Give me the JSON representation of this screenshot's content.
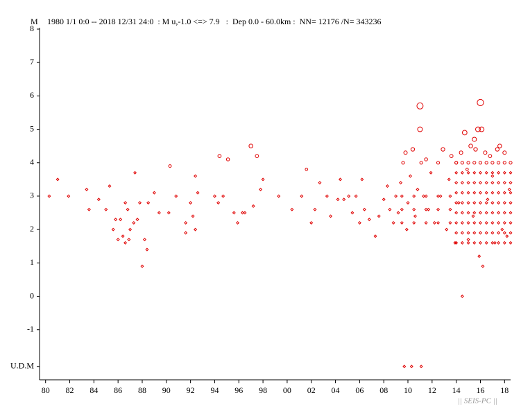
{
  "chart_data": {
    "type": "scatter",
    "title": "1980 1/1 0:0 -- 2018 12/31 24:0  : M u,-1.0 <=> 7.9   :  Dep 0.0 - 60.0km :  NN= 12176 /N= 343236",
    "y_label": "M",
    "footer": "|| SEIS-PC ||",
    "xlim": [
      1979.5,
      2018.5
    ],
    "ylim": [
      -2.5,
      8
    ],
    "xticks": [
      {
        "value": 1980,
        "label": "80"
      },
      {
        "value": 1982,
        "label": "82"
      },
      {
        "value": 1984,
        "label": "84"
      },
      {
        "value": 1986,
        "label": "86"
      },
      {
        "value": 1988,
        "label": "88"
      },
      {
        "value": 1990,
        "label": "90"
      },
      {
        "value": 1992,
        "label": "92"
      },
      {
        "value": 1994,
        "label": "94"
      },
      {
        "value": 1996,
        "label": "96"
      },
      {
        "value": 1998,
        "label": "98"
      },
      {
        "value": 2000,
        "label": "00"
      },
      {
        "value": 2002,
        "label": "02"
      },
      {
        "value": 2004,
        "label": "04"
      },
      {
        "value": 2006,
        "label": "06"
      },
      {
        "value": 2008,
        "label": "08"
      },
      {
        "value": 2010,
        "label": "10"
      },
      {
        "value": 2012,
        "label": "12"
      },
      {
        "value": 2014,
        "label": "14"
      },
      {
        "value": 2016,
        "label": "16"
      },
      {
        "value": 2018,
        "label": "18"
      }
    ],
    "yticks": [
      {
        "value": -2.1,
        "label": "U.D.M"
      },
      -1,
      0,
      1,
      2,
      3,
      4,
      5,
      6,
      7,
      8
    ],
    "series": [
      {
        "name": "events",
        "color": "#e00000",
        "x": [
          1980.3,
          1981.0,
          1981.9,
          1983.4,
          1983.6,
          1984.4,
          1985.0,
          1985.3,
          1985.6,
          1985.8,
          1986.0,
          1986.2,
          1986.4,
          1986.6,
          1986.6,
          1986.8,
          1986.9,
          1987.0,
          1987.3,
          1987.4,
          1987.6,
          1987.8,
          1988.0,
          1988.2,
          1988.4,
          1988.5,
          1989.0,
          1989.4,
          1990.2,
          1990.3,
          1990.8,
          1991.6,
          1991.6,
          1992.0,
          1992.2,
          1992.4,
          1992.4,
          1992.6,
          1994.0,
          1994.3,
          1994.4,
          1994.7,
          1995.1,
          1995.6,
          1995.9,
          1996.3,
          1996.5,
          1997.0,
          1997.2,
          1997.5,
          1997.8,
          1998.0,
          1999.3,
          2000.4,
          2001.2,
          2001.6,
          2002.0,
          2002.3,
          2002.7,
          2003.3,
          2003.6,
          2004.2,
          2004.4,
          2004.7,
          2005.1,
          2005.4,
          2005.7,
          2006.0,
          2006.2,
          2006.4,
          2006.8,
          2007.3,
          2007.6,
          2008.0,
          2008.3,
          2008.5,
          2008.8,
          2009.0,
          2009.2,
          2009.4,
          2009.6,
          2009.8,
          2009.9,
          2010.0,
          2010.2,
          2010.4,
          2010.6,
          2010.8,
          2011.0,
          2011.0,
          2011.1,
          2011.3,
          2011.5,
          2011.7,
          2011.9,
          2012.2,
          2012.5,
          2012.7,
          2012.9,
          2013.2,
          2013.4,
          2013.6,
          2013.9,
          2014.0,
          2014.2,
          2014.4,
          2014.5,
          2014.7,
          2014.9,
          2015.0,
          2015.2,
          2015.4,
          2015.5,
          2015.6,
          2015.8,
          2015.9,
          2016.0,
          2016.1,
          2016.2,
          2016.4,
          2016.6,
          2016.8,
          2017.0,
          2017.2,
          2017.4,
          2017.6,
          2017.8,
          2018.0,
          2018.2,
          2018.4,
          2009.7,
          2010.3,
          2011.1,
          2009.5,
          2010.5,
          2011.5,
          2012.5,
          2013.5,
          2009.5,
          2010.5,
          2011.5,
          2012.5,
          2013.5,
          2009.5,
          2010.5,
          2011.5,
          2012.5,
          2013.5,
          2014,
          2014.5,
          2015,
          2015.5,
          2016,
          2016.5,
          2017,
          2017.5,
          2018,
          2018.5,
          2014,
          2014.5,
          2015,
          2015.5,
          2016,
          2016.5,
          2017,
          2017.5,
          2018,
          2018.5,
          2014,
          2014.5,
          2015,
          2015.5,
          2016,
          2016.5,
          2017,
          2017.5,
          2018,
          2018.5,
          2014,
          2014.5,
          2015,
          2015.5,
          2016,
          2016.5,
          2017,
          2017.5,
          2018,
          2018.5,
          2014,
          2014.5,
          2015,
          2015.5,
          2016,
          2016.5,
          2017,
          2017.5,
          2018,
          2018.5,
          2014,
          2014.5,
          2015,
          2015.5,
          2016,
          2016.5,
          2017,
          2017.5,
          2018,
          2018.5,
          2014,
          2014.5,
          2015,
          2015.5,
          2016,
          2016.5,
          2017,
          2017.5,
          2018,
          2018.5,
          2014,
          2014.5,
          2015,
          2015.5,
          2016,
          2016.5,
          2017,
          2017.5,
          2018,
          2018.5,
          2014,
          2014.5,
          2015,
          2015.5,
          2016,
          2016.5,
          2017,
          2017.5,
          2018,
          2018.5
        ],
        "values": [
          3,
          3.5,
          3,
          3.2,
          2.6,
          2.9,
          2.6,
          3.3,
          2,
          2.3,
          1.7,
          2.3,
          1.8,
          2.8,
          1.6,
          2.6,
          1.7,
          2,
          2.2,
          3.7,
          2.3,
          2.8,
          0.9,
          1.7,
          1.4,
          2.8,
          3.1,
          2.5,
          2.5,
          3.9,
          3,
          1.9,
          2.2,
          2.8,
          2.4,
          2,
          3.6,
          3.1,
          3,
          2.8,
          4.2,
          3,
          4.1,
          2.5,
          2.2,
          2.5,
          2.5,
          4.5,
          2.7,
          4.2,
          3.2,
          3.5,
          3,
          2.6,
          3,
          3.8,
          2.2,
          2.6,
          3.4,
          3,
          2.4,
          2.9,
          3.5,
          2.9,
          3,
          2.5,
          3,
          2.2,
          3.5,
          2.6,
          2.3,
          1.8,
          2.4,
          2.9,
          3.3,
          2.6,
          2.2,
          3,
          2.5,
          3.4,
          4,
          4.3,
          2,
          2.8,
          3.6,
          4.4,
          2.4,
          3.2,
          5.7,
          5,
          4,
          3,
          4.1,
          2.6,
          3.7,
          2.2,
          4,
          3,
          4.4,
          2,
          3.5,
          4.2,
          1.6,
          4,
          2.8,
          4.3,
          0,
          4.9,
          3.8,
          1.7,
          4.5,
          2.4,
          4.7,
          4.4,
          5,
          1.2,
          5.8,
          5,
          0.9,
          4.3,
          2.9,
          4.2,
          3.6,
          1.6,
          4.4,
          4.5,
          2,
          4.3,
          1.8,
          3.2,
          -2.1,
          -2.1,
          -2.1,
          2.2,
          2.2,
          2.2,
          2.2,
          2.2,
          2.6,
          2.6,
          2.6,
          2.6,
          2.6,
          3,
          3,
          3,
          3,
          3,
          1.6,
          1.6,
          1.6,
          1.6,
          1.6,
          1.6,
          1.6,
          1.6,
          1.6,
          1.6,
          1.9,
          1.9,
          1.9,
          1.9,
          1.9,
          1.9,
          1.9,
          1.9,
          1.9,
          1.9,
          2.2,
          2.2,
          2.2,
          2.2,
          2.2,
          2.2,
          2.2,
          2.2,
          2.2,
          2.2,
          2.5,
          2.5,
          2.5,
          2.5,
          2.5,
          2.5,
          2.5,
          2.5,
          2.5,
          2.5,
          2.8,
          2.8,
          2.8,
          2.8,
          2.8,
          2.8,
          2.8,
          2.8,
          2.8,
          2.8,
          3.1,
          3.1,
          3.1,
          3.1,
          3.1,
          3.1,
          3.1,
          3.1,
          3.1,
          3.1,
          3.4,
          3.4,
          3.4,
          3.4,
          3.4,
          3.4,
          3.4,
          3.4,
          3.4,
          3.4,
          3.7,
          3.7,
          3.7,
          3.7,
          3.7,
          3.7,
          3.7,
          3.7,
          3.7,
          3.7,
          4,
          4,
          4,
          4,
          4,
          4,
          4,
          4,
          4,
          4
        ]
      }
    ]
  }
}
